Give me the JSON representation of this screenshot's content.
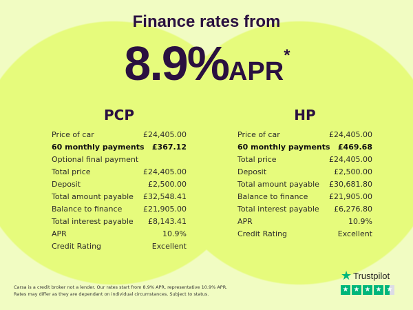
{
  "header": {
    "line1": "Finance rates from",
    "rate": "8.9%",
    "apr": "APR",
    "asterisk": "*"
  },
  "pcp": {
    "title": "PCP",
    "rows": [
      {
        "label": "Price of car",
        "value": "£24,405.00"
      },
      {
        "label": "60 monthly payments",
        "value": "£367.12",
        "bold": true
      },
      {
        "label": "Optional final payment",
        "value": ""
      },
      {
        "label": "Total price",
        "value": "£24,405.00"
      },
      {
        "label": "Deposit",
        "value": "£2,500.00"
      },
      {
        "label": "Total amount payable",
        "value": "£32,548.41"
      },
      {
        "label": "Balance to finance",
        "value": "£21,905.00"
      },
      {
        "label": "Total interest payable",
        "value": "£8,143.41"
      },
      {
        "label": "APR",
        "value": "10.9%"
      },
      {
        "label": "Credit Rating",
        "value": "Excellent"
      }
    ]
  },
  "hp": {
    "title": "HP",
    "rows": [
      {
        "label": "Price of car",
        "value": "£24,405.00"
      },
      {
        "label": "60 monthly payments",
        "value": "£469.68",
        "bold": true
      },
      {
        "label": "Total price",
        "value": "£24,405.00"
      },
      {
        "label": "Deposit",
        "value": "£2,500.00"
      },
      {
        "label": "Total amount payable",
        "value": "£30,681.80"
      },
      {
        "label": "Balance to finance",
        "value": "£21,905.00"
      },
      {
        "label": "Total interest payable",
        "value": "£6,276.80"
      },
      {
        "label": "APR",
        "value": "10.9%"
      },
      {
        "label": "Credit Rating",
        "value": "Excellent"
      }
    ]
  },
  "disclaimer": {
    "line1": "Carsa is a credit broker not a lender. Our rates start from 8.9% APR, representative 10.9% APR.",
    "line2": "Rates may differ as they are dependant on individual circumstances. Subject to status."
  },
  "trustpilot": {
    "name": "Trustpilot",
    "rating_stars": 4.5,
    "icon": "star-icon",
    "color": "#00b67a"
  }
}
